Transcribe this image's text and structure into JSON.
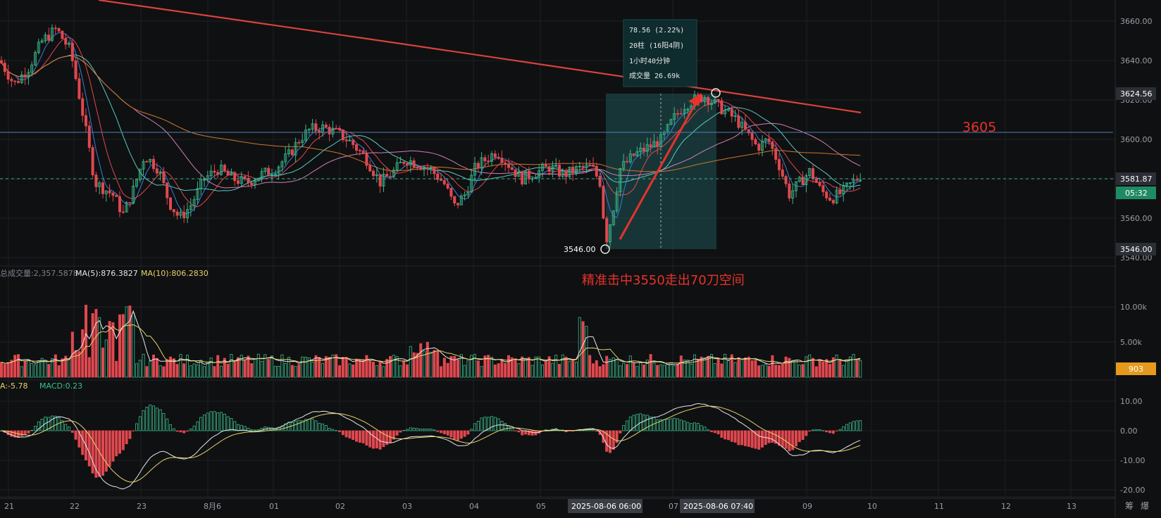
{
  "colors": {
    "up": "#3ab98a",
    "down": "#e0484f",
    "bg": "#0f1012",
    "grid": "#1d1f24",
    "text": "#9a9ea6"
  },
  "price_axis": {
    "ticks": [
      "3660.00",
      "3640.00",
      "3620.00",
      "3600.00",
      "3580.00",
      "3560.00",
      "3540.00"
    ]
  },
  "volume_axis": {
    "ticks": [
      "10.00k",
      "5.00k"
    ]
  },
  "macd_axis": {
    "ticks": [
      "10.00",
      "0.00",
      "-10.00",
      "-20.00"
    ]
  },
  "time_axis": {
    "ticks": [
      "21",
      "22",
      "23",
      "8月6",
      "01",
      "02",
      "03",
      "04",
      "05",
      "07",
      "09",
      "10",
      "11",
      "12",
      "13"
    ]
  },
  "badges": {
    "price_high": "3624.56",
    "price_current": "3581.87",
    "countdown": "05:32",
    "price_low": "3546.00",
    "volume_current": "903",
    "crosshair_time_start": "2025-08-06 06:00",
    "crosshair_time_end": "2025-08-06 07:40"
  },
  "volume_legend": {
    "vol": "总成交量:2,357.5878",
    "ma5": "MA(5):876.3827",
    "ma10": "MA(10):806.2830"
  },
  "macd_legend": {
    "dea": "A:-5.78",
    "macd": "MACD:0.23"
  },
  "tooltip": {
    "line1": "78.56 (2.22%)",
    "line2": "20柱 (16阳4阴)",
    "line3": "1小时40分钟",
    "line4": "成交量 26.69k"
  },
  "annotations": {
    "level": "3605",
    "note": "精准击中3550走出70刀空间",
    "low_label": "3546.00"
  },
  "bottom_right": {
    "a": "筹",
    "b": "爆"
  },
  "chart_data": {
    "type": "candlestick",
    "price_range": [
      3540,
      3668
    ],
    "horizontal_line": 3605,
    "current_price": 3581.87,
    "range_measure": {
      "from": 3546.0,
      "to": 3624.56,
      "change": 78.56,
      "percent": 2.22,
      "bars": 20
    },
    "ma_long": {
      "from": 3672,
      "to": 3615
    },
    "volume_range": [
      0,
      13000
    ],
    "macd_range": [
      -22,
      12
    ]
  }
}
